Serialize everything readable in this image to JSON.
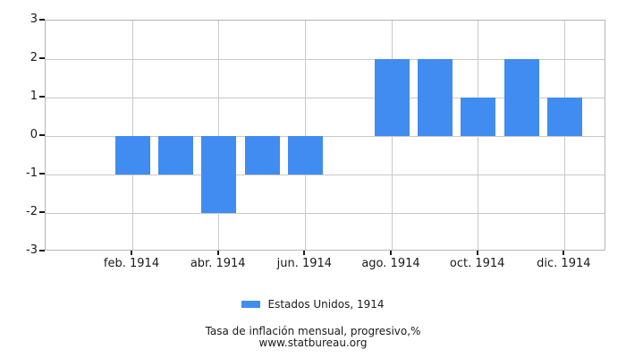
{
  "legend": {
    "label": "Estados Unidos, 1914"
  },
  "footer": {
    "caption": "Tasa de inflación mensual, progresivo,%",
    "website": "www.statbureau.org"
  },
  "chart_data": {
    "type": "bar",
    "title": "Tasa de inflación mensual, progresivo,%",
    "subtitle": "www.statbureau.org",
    "x": [
      1,
      2,
      3,
      4,
      5,
      6,
      7,
      8,
      9,
      10,
      11,
      12
    ],
    "series": [
      {
        "name": "Estados Unidos, 1914",
        "color": "#418CF0",
        "values": [
          0,
          -1,
          -1,
          -2,
          -1,
          -1,
          0,
          2,
          2,
          1,
          2,
          1
        ]
      }
    ],
    "x_tick_labels": [
      "feb. 1914",
      "abr. 1914",
      "jun. 1914",
      "ago. 1914",
      "oct. 1914",
      "dic. 1914"
    ],
    "x_tick_slots": [
      1,
      3,
      5,
      7,
      9,
      11
    ],
    "y_ticks": [
      3,
      2,
      1,
      0,
      -1,
      -2,
      -3
    ],
    "ylim": [
      -3,
      3
    ],
    "grid": true,
    "legend_position": "bottom-center",
    "gridline_color": "#c9c9c9",
    "background_color": "#ffffff"
  }
}
